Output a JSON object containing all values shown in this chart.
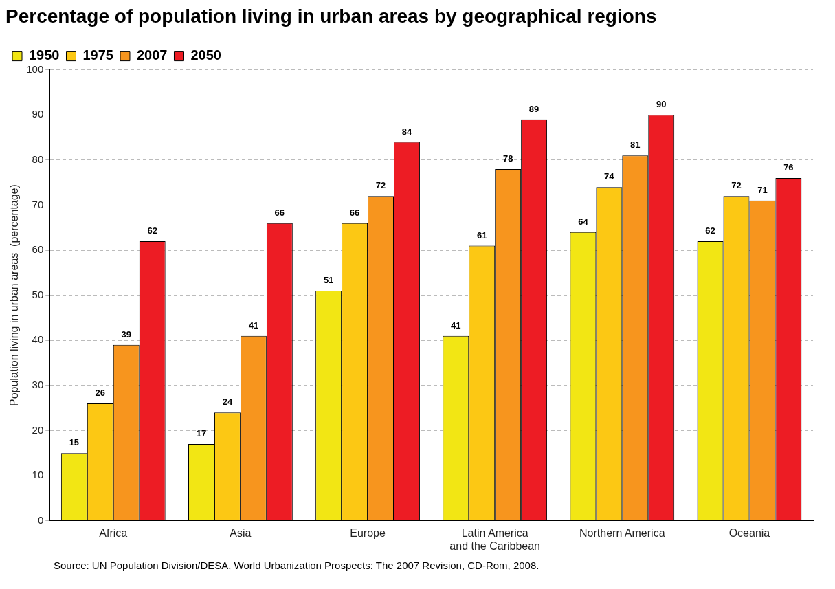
{
  "chart_data": {
    "type": "bar",
    "title": "Percentage of population living in urban areas by geographical regions",
    "ylabel": "Population living in urban areas  (percentage)",
    "categories": [
      "Africa",
      "Asia",
      "Europe",
      "Latin America and the Caribbean",
      "Northern America",
      "Oceania"
    ],
    "series": [
      {
        "name": "1950",
        "color": "#f2e614",
        "values": [
          15,
          17,
          51,
          41,
          64,
          62
        ]
      },
      {
        "name": "1975",
        "color": "#fcc814",
        "values": [
          26,
          24,
          66,
          61,
          74,
          72
        ]
      },
      {
        "name": "2007",
        "color": "#f7951e",
        "values": [
          39,
          41,
          72,
          78,
          81,
          71
        ]
      },
      {
        "name": "2050",
        "color": "#ed1c24",
        "values": [
          62,
          66,
          84,
          89,
          90,
          76
        ]
      }
    ],
    "ylim": [
      0,
      100
    ],
    "yticks": [
      0,
      10,
      20,
      30,
      40,
      50,
      60,
      70,
      80,
      90,
      100
    ],
    "grid": "y",
    "legend": "top left",
    "data_labels": true,
    "annotations": [
      "Source: UN Population Division/DESA, World Urbanization Prospects: The 2007 Revision, CD-Rom, 2008."
    ]
  }
}
